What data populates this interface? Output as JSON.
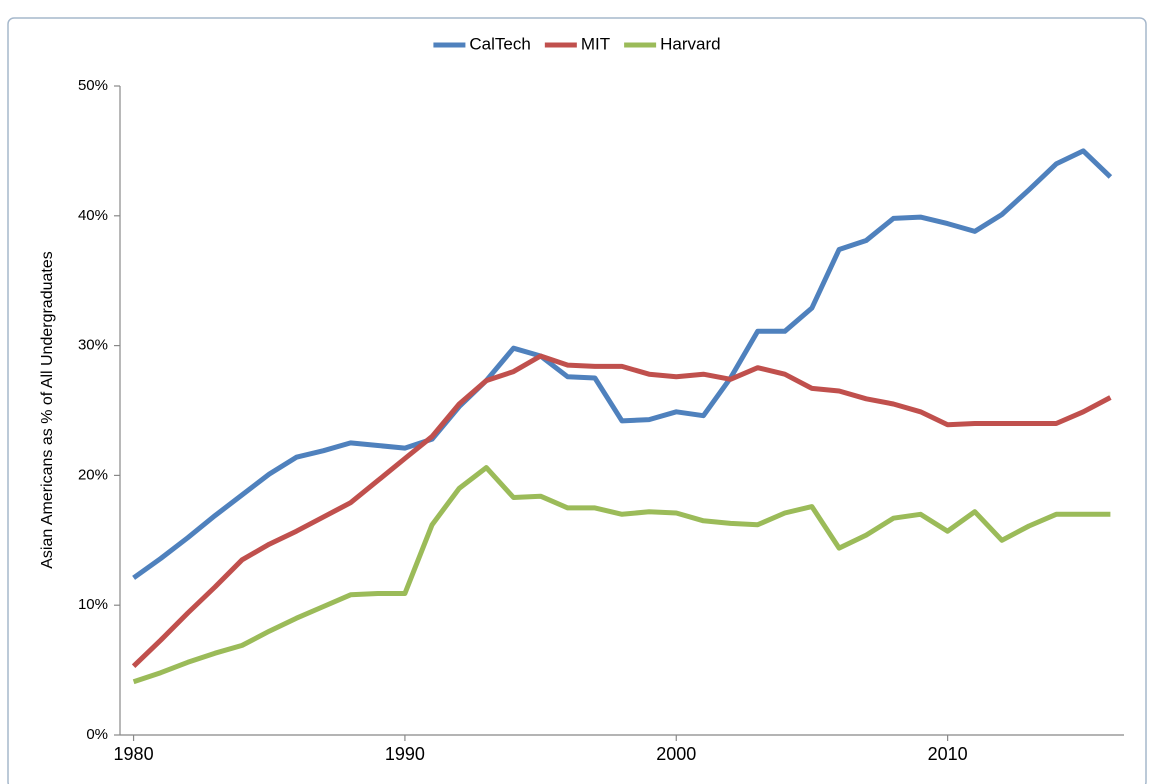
{
  "chart_data": {
    "type": "line",
    "y_label": "Asian Americans as % of All Undergraduates",
    "x": [
      1980,
      1981,
      1982,
      1983,
      1984,
      1985,
      1986,
      1987,
      1988,
      1989,
      1990,
      1991,
      1992,
      1993,
      1994,
      1995,
      1996,
      1997,
      1998,
      1999,
      2000,
      2001,
      2002,
      2003,
      2004,
      2005,
      2006,
      2007,
      2008,
      2009,
      2010,
      2011,
      2012,
      2013,
      2014,
      2015,
      2016
    ],
    "series": [
      {
        "name": "CalTech",
        "color": "#4f81bd",
        "values": [
          12.1,
          13.6,
          15.2,
          16.9,
          18.5,
          20.1,
          21.4,
          21.9,
          22.5,
          22.3,
          22.1,
          22.8,
          25.3,
          27.3,
          29.8,
          29.2,
          27.6,
          27.5,
          24.2,
          24.3,
          24.9,
          24.6,
          27.5,
          31.1,
          31.1,
          32.9,
          37.4,
          38.1,
          39.8,
          39.9,
          39.4,
          38.8,
          40.1,
          42.0,
          44.0,
          45.0,
          43.0
        ]
      },
      {
        "name": "MIT",
        "color": "#c0504d",
        "values": [
          5.3,
          7.3,
          9.4,
          11.4,
          13.5,
          14.7,
          15.7,
          16.8,
          17.9,
          19.6,
          21.3,
          23.0,
          25.5,
          27.3,
          28.0,
          29.2,
          28.5,
          28.4,
          28.4,
          27.8,
          27.6,
          27.8,
          27.4,
          28.3,
          27.8,
          26.7,
          26.5,
          25.9,
          25.5,
          24.9,
          23.9,
          24.0,
          24.0,
          24.0,
          24.0,
          24.9,
          26.0
        ]
      },
      {
        "name": "Harvard",
        "color": "#9bbb59",
        "values": [
          4.1,
          4.8,
          5.6,
          6.3,
          6.9,
          8.0,
          9.0,
          9.9,
          10.8,
          10.9,
          10.9,
          16.2,
          19.0,
          20.6,
          18.3,
          18.4,
          17.5,
          17.5,
          17.0,
          17.2,
          17.1,
          16.5,
          16.3,
          16.2,
          17.1,
          17.6,
          14.4,
          15.4,
          16.7,
          17.0,
          15.7,
          17.2,
          15.0,
          16.1,
          17.0,
          17.0,
          17.0
        ]
      }
    ],
    "xlim": [
      1979.5,
      2016.5
    ],
    "xticks": [
      1980,
      1990,
      2000,
      2010
    ],
    "ylim": [
      0,
      50
    ],
    "yticks": [
      {
        "value": 0,
        "label": "0%"
      },
      {
        "value": 10,
        "label": "10%"
      },
      {
        "value": 20,
        "label": "20%"
      },
      {
        "value": 30,
        "label": "30%"
      },
      {
        "value": 40,
        "label": "40%"
      },
      {
        "value": 50,
        "label": "50%"
      }
    ],
    "legend": "top"
  }
}
